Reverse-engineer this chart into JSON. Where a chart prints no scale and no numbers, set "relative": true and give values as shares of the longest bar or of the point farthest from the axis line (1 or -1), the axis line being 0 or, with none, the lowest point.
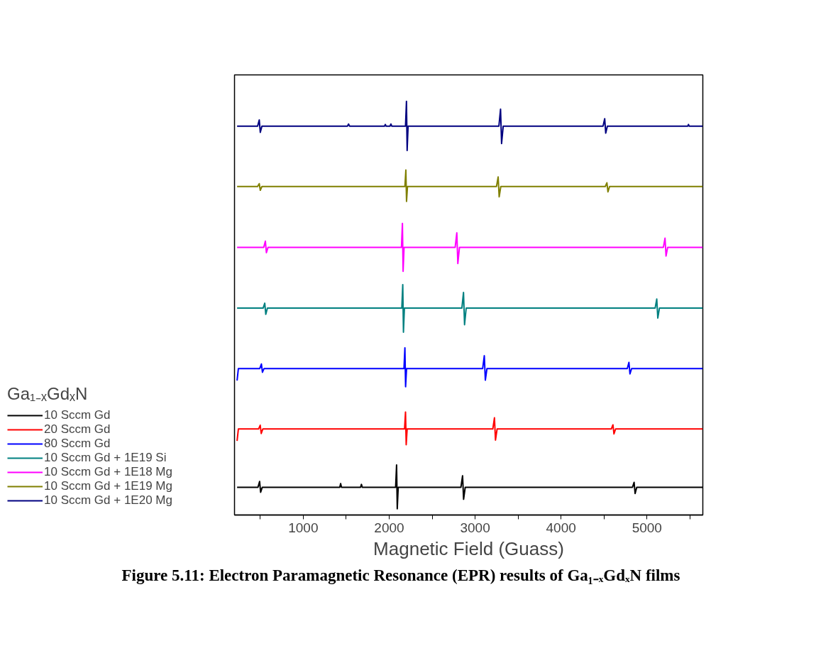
{
  "chart_data": {
    "type": "line",
    "relative": true,
    "xlabel": "Magnetic Field (Guass)",
    "legend_title": "Ga₁₋ₓGdₓN",
    "annotations": [
      "Figure 5.11: Electron Paramagnetic Resonance (EPR) results of Ga₁₋ₓGdₓN films"
    ],
    "xlim": [
      200,
      5650
    ],
    "xticks": [
      {
        "value": 500,
        "label": null
      },
      1000,
      {
        "value": 1500,
        "label": null
      },
      2000,
      {
        "value": 2500,
        "label": null
      },
      3000,
      {
        "value": 3500,
        "label": null
      },
      4000,
      {
        "value": 4500,
        "label": null
      },
      5000,
      {
        "value": 5500,
        "label": null
      }
    ],
    "grid": false,
    "legend": "bottom left",
    "marker": "none",
    "line_style": "solid",
    "series": [
      {
        "name": "10 Sccm Gd",
        "color": "#000000",
        "x": [
          230,
          473,
          492,
          504,
          523,
          1425,
          1435,
          1445,
          1667,
          1677,
          1687,
          2075,
          2086,
          2094,
          2105,
          2835,
          2854,
          2866,
          2885,
          4831,
          4850,
          4862,
          4881,
          5650
        ],
        "values": [
          0.067,
          0.067,
          0.081,
          0.055,
          0.067,
          0.067,
          0.076,
          0.067,
          0.067,
          0.074,
          0.067,
          0.067,
          0.121,
          0.015,
          0.067,
          0.067,
          0.095,
          0.038,
          0.067,
          0.067,
          0.079,
          0.052,
          0.067,
          0.067
        ]
      },
      {
        "name": "20 Sccm Gd",
        "color": "#ff0000",
        "x": [
          230,
          245,
          480,
          499,
          511,
          530,
          2179,
          2190,
          2198,
          2209,
          3206,
          3225,
          3237,
          3256,
          4585,
          4604,
          4616,
          4635,
          5650
        ],
        "values": [
          0.179,
          0.208,
          0.208,
          0.217,
          0.197,
          0.208,
          0.208,
          0.249,
          0.17,
          0.208,
          0.208,
          0.235,
          0.181,
          0.208,
          0.208,
          0.218,
          0.196,
          0.208,
          0.208
        ]
      },
      {
        "name": "80 Sccm Gd",
        "color": "#0000ff",
        "x": [
          230,
          245,
          494,
          513,
          525,
          544,
          2172,
          2183,
          2191,
          2202,
          3088,
          3107,
          3119,
          3138,
          4771,
          4790,
          4802,
          4821,
          5650
        ],
        "values": [
          0.325,
          0.354,
          0.354,
          0.365,
          0.345,
          0.354,
          0.354,
          0.404,
          0.31,
          0.354,
          0.354,
          0.385,
          0.326,
          0.354,
          0.354,
          0.369,
          0.341,
          0.354,
          0.354
        ]
      },
      {
        "name": "10 Sccm Gd + 1E19 Si",
        "color": "#008080",
        "x": [
          230,
          533,
          552,
          564,
          583,
          2147,
          2158,
          2166,
          2177,
          2846,
          2865,
          2877,
          2896,
          5095,
          5114,
          5126,
          5145,
          5650
        ],
        "values": [
          0.5,
          0.5,
          0.512,
          0.485,
          0.5,
          0.5,
          0.557,
          0.442,
          0.5,
          0.5,
          0.538,
          0.46,
          0.5,
          0.5,
          0.522,
          0.476,
          0.5,
          0.5
        ]
      },
      {
        "name": "10 Sccm Gd + 1E18 Mg",
        "color": "#ff00ff",
        "x": [
          230,
          540,
          559,
          571,
          590,
          2143,
          2154,
          2162,
          2173,
          2768,
          2787,
          2799,
          2818,
          5191,
          5210,
          5222,
          5241,
          5650
        ],
        "values": [
          0.647,
          0.647,
          0.662,
          0.634,
          0.647,
          0.647,
          0.705,
          0.589,
          0.647,
          0.647,
          0.682,
          0.608,
          0.647,
          0.647,
          0.669,
          0.626,
          0.647,
          0.647
        ]
      },
      {
        "name": "10 Sccm Gd + 1E19 Mg",
        "color": "#808000",
        "x": [
          230,
          469,
          488,
          500,
          519,
          2183,
          2194,
          2202,
          2213,
          3249,
          3268,
          3280,
          3299,
          4515,
          4534,
          4546,
          4565,
          5650
        ],
        "values": [
          0.794,
          0.794,
          0.801,
          0.785,
          0.794,
          0.794,
          0.834,
          0.758,
          0.794,
          0.794,
          0.817,
          0.769,
          0.794,
          0.794,
          0.803,
          0.781,
          0.794,
          0.794
        ]
      },
      {
        "name": "10 Sccm Gd + 1E20 Mg",
        "color": "#000080",
        "x": [
          230,
          469,
          488,
          500,
          519,
          1515,
          1527,
          1540,
          1945,
          1955,
          1965,
          2010,
          2020,
          2030,
          2190,
          2201,
          2209,
          2220,
          3277,
          3296,
          3308,
          3327,
          4489,
          4508,
          4520,
          4539,
          5475,
          5483,
          5491,
          5650
        ],
        "values": [
          0.94,
          0.94,
          0.955,
          0.925,
          0.94,
          0.94,
          0.945,
          0.94,
          0.94,
          0.944,
          0.94,
          0.94,
          0.945,
          0.94,
          0.94,
          1.0,
          0.881,
          0.94,
          0.94,
          0.981,
          0.898,
          0.94,
          0.94,
          0.958,
          0.923,
          0.94,
          0.94,
          0.944,
          0.94,
          0.94
        ]
      }
    ]
  }
}
